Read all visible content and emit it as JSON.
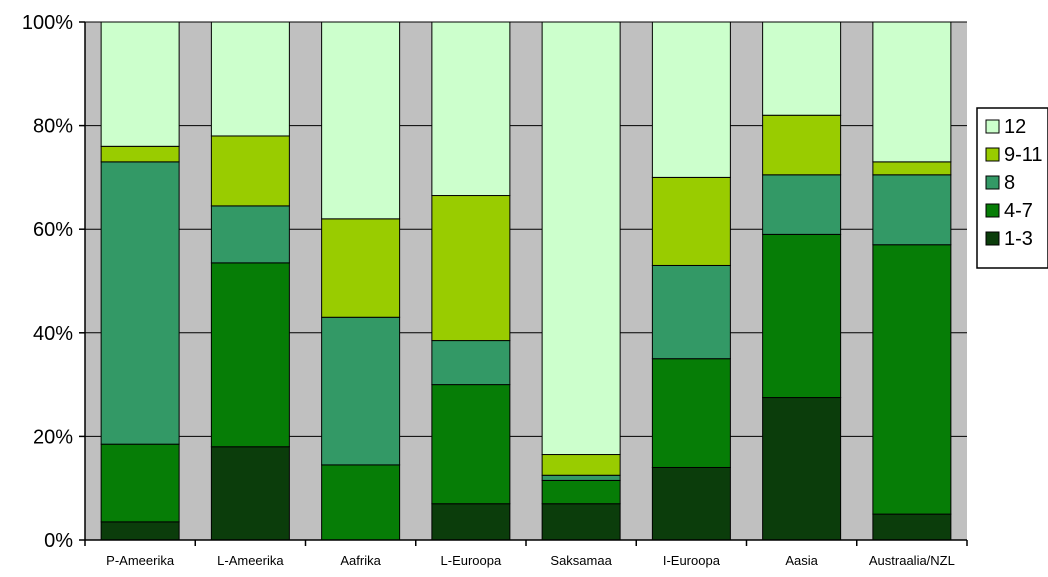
{
  "chart_data": {
    "type": "bar",
    "stacked": true,
    "percent_stacked": true,
    "categories": [
      "P-Ameerika",
      "L-Ameerika",
      "Aafrika",
      "L-Euroopa",
      "Saksamaa",
      "I-Euroopa",
      "Aasia",
      "Austraalia/NZL"
    ],
    "series": [
      {
        "name": "1-3",
        "color": "#0b3d0b",
        "values": [
          3.5,
          18,
          0,
          7,
          7,
          14,
          27.5,
          5
        ]
      },
      {
        "name": "4-7",
        "color": "#067d06",
        "values": [
          15,
          35.5,
          14.5,
          23,
          4.5,
          21,
          31.5,
          52
        ]
      },
      {
        "name": "8",
        "color": "#339966",
        "values": [
          54.5,
          11,
          28.5,
          8.5,
          1,
          18,
          11.5,
          13.5
        ]
      },
      {
        "name": "9-11",
        "color": "#99cc00",
        "values": [
          3,
          13.5,
          19,
          28,
          4,
          17,
          11.5,
          2.5
        ]
      },
      {
        "name": "12",
        "color": "#ccffcc",
        "values": [
          24,
          22,
          38,
          33.5,
          83.5,
          30,
          18,
          27
        ]
      }
    ],
    "yticks": [
      "0%",
      "20%",
      "40%",
      "60%",
      "80%",
      "100%"
    ],
    "ylim": [
      0,
      100
    ],
    "plot_background": "#c0c0c0",
    "grid": true,
    "legend_position": "right",
    "legend_order": [
      "12",
      "9-11",
      "8",
      "4-7",
      "1-3"
    ]
  }
}
